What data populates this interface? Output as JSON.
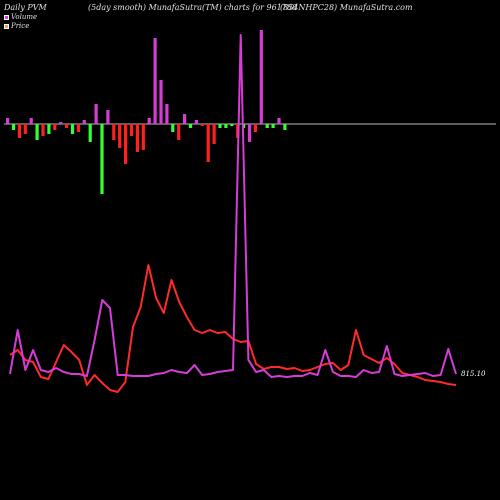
{
  "header": {
    "left": "Daily PVM",
    "mid": "(5day smooth) MunafaSutra(TM) charts for 961788",
    "right": "(854NHPC28) MunafaSutra.com"
  },
  "legend": [
    {
      "label": "Volume",
      "color": "#d63cd6"
    },
    {
      "label": "Price",
      "color": "#ff9a3c"
    }
  ],
  "chart_data": {
    "type": "bar+line",
    "baseline_bar": {
      "up_color": "#d63cd6",
      "down_color": "#ff2020",
      "green_color": "#33ff33",
      "bars": [
        {
          "v": 6,
          "c": "m"
        },
        {
          "v": -6,
          "c": "g"
        },
        {
          "v": -14,
          "c": "r"
        },
        {
          "v": -10,
          "c": "r"
        },
        {
          "v": 6,
          "c": "m"
        },
        {
          "v": -16,
          "c": "g"
        },
        {
          "v": -12,
          "c": "r"
        },
        {
          "v": -10,
          "c": "g"
        },
        {
          "v": -6,
          "c": "r"
        },
        {
          "v": 2,
          "c": "m"
        },
        {
          "v": -4,
          "c": "r"
        },
        {
          "v": -10,
          "c": "g"
        },
        {
          "v": -8,
          "c": "r"
        },
        {
          "v": 4,
          "c": "m"
        },
        {
          "v": -18,
          "c": "g"
        },
        {
          "v": 20,
          "c": "m"
        },
        {
          "v": -70,
          "c": "g"
        },
        {
          "v": 14,
          "c": "m"
        },
        {
          "v": -16,
          "c": "r"
        },
        {
          "v": -24,
          "c": "r"
        },
        {
          "v": -40,
          "c": "r"
        },
        {
          "v": -12,
          "c": "r"
        },
        {
          "v": -28,
          "c": "r"
        },
        {
          "v": -26,
          "c": "r"
        },
        {
          "v": 6,
          "c": "m"
        },
        {
          "v": 86,
          "c": "m"
        },
        {
          "v": 44,
          "c": "m"
        },
        {
          "v": 20,
          "c": "m"
        },
        {
          "v": -8,
          "c": "g"
        },
        {
          "v": -16,
          "c": "r"
        },
        {
          "v": 10,
          "c": "m"
        },
        {
          "v": -4,
          "c": "g"
        },
        {
          "v": 4,
          "c": "m"
        },
        {
          "v": -2,
          "c": "r"
        },
        {
          "v": -38,
          "c": "r"
        },
        {
          "v": -20,
          "c": "r"
        },
        {
          "v": -4,
          "c": "g"
        },
        {
          "v": -4,
          "c": "g"
        },
        {
          "v": -2,
          "c": "g"
        },
        {
          "v": -14,
          "c": "r"
        },
        {
          "v": -4,
          "c": "g"
        },
        {
          "v": -18,
          "c": "m"
        },
        {
          "v": -8,
          "c": "r"
        },
        {
          "v": 94,
          "c": "m"
        },
        {
          "v": -4,
          "c": "g"
        },
        {
          "v": -4,
          "c": "g"
        },
        {
          "v": 6,
          "c": "m"
        },
        {
          "v": -6,
          "c": "g"
        }
      ]
    },
    "price_series": {
      "name": "Price",
      "color": "#ff2a2a",
      "values": [
        345,
        350,
        340,
        338,
        323,
        321,
        338,
        355,
        348,
        340,
        315,
        325,
        317,
        310,
        308,
        318,
        373,
        393,
        435,
        402,
        387,
        420,
        398,
        383,
        370,
        367,
        370,
        367,
        368,
        361,
        358,
        359,
        336,
        331,
        333,
        333,
        331,
        332,
        329,
        330,
        333,
        336,
        337,
        330,
        335,
        370,
        345,
        341,
        337,
        342,
        336,
        327,
        325,
        323,
        320,
        319,
        318,
        316,
        315
      ]
    },
    "volume_series": {
      "name": "Volume",
      "color": "#d63cd6",
      "values": [
        374,
        330,
        370,
        350,
        370,
        372,
        368,
        372,
        374,
        374,
        376,
        340,
        300,
        308,
        375,
        375,
        376,
        376,
        376,
        374,
        373,
        370,
        372,
        373,
        365,
        375,
        374,
        372,
        371,
        370,
        35,
        360,
        372,
        370,
        377,
        376,
        377,
        376,
        376,
        373,
        375,
        350,
        372,
        376,
        376,
        377,
        370,
        373,
        372,
        346,
        374,
        376,
        375,
        374,
        373,
        376,
        375,
        349,
        374
      ]
    },
    "price_label": "815.10",
    "ylim": [
      0,
      500
    ]
  }
}
